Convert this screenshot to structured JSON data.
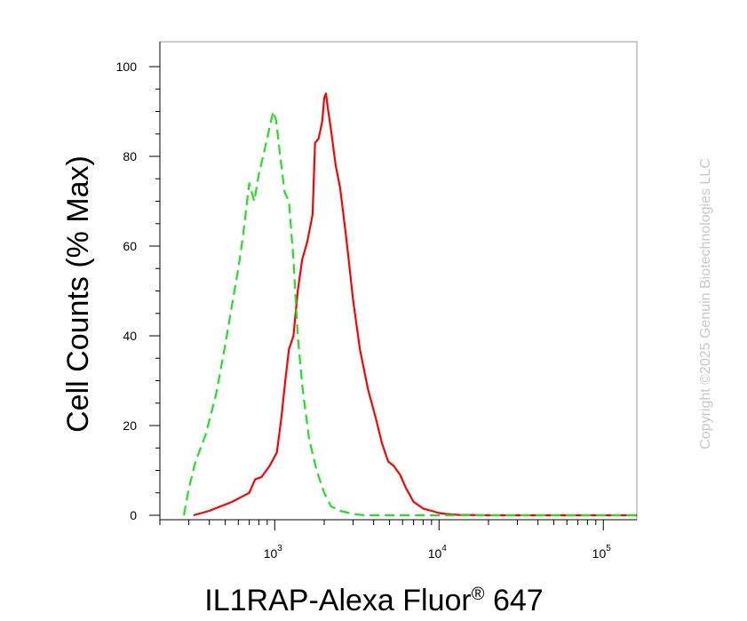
{
  "chart_data": {
    "type": "line",
    "title": "",
    "xlabel": "IL1RAP-Alexa Fluor",
    "xlabel_superscript": "®",
    "xlabel_suffix": " 647",
    "ylabel": "Cell Counts (% Max)",
    "x_scale": "log",
    "xlim": [
      200,
      160000
    ],
    "ylim": [
      0,
      100
    ],
    "y_ticks": [
      0,
      20,
      40,
      60,
      80,
      100
    ],
    "y_tick_labels": [
      "0",
      "20",
      "40",
      "60",
      "80",
      "100"
    ],
    "x_ticks": [
      {
        "value": 1000,
        "base": "10",
        "exp": "3"
      },
      {
        "value": 10000,
        "base": "10",
        "exp": "4"
      },
      {
        "value": 100000,
        "base": "10",
        "exp": "5"
      }
    ],
    "grid": false,
    "series": [
      {
        "name": "",
        "color": "#ff0000",
        "style": "solid",
        "x": [
          320,
          400,
          470,
          550,
          620,
          700,
          760,
          830,
          930,
          1030,
          1100,
          1160,
          1220,
          1300,
          1380,
          1470,
          1580,
          1700,
          1760,
          1850,
          1900,
          1950,
          2000,
          2050,
          2100,
          2200,
          2350,
          2500,
          2700,
          2800,
          3000,
          3300,
          3700,
          4100,
          4500,
          4900,
          5300,
          5800,
          6300,
          7000,
          8000,
          9000,
          10000,
          11000,
          13000,
          20000,
          50000,
          100000,
          160000
        ],
        "y": [
          0,
          1,
          2,
          3,
          4,
          5,
          8,
          8.5,
          11,
          14,
          22,
          30,
          37,
          40,
          50,
          57,
          61,
          67,
          83,
          84,
          86,
          88,
          93,
          94,
          91,
          86,
          78,
          73,
          63,
          58,
          48,
          37,
          28,
          22,
          16,
          12,
          11,
          9,
          6,
          3,
          1.5,
          1,
          0.5,
          0.3,
          0.1,
          0,
          0,
          0,
          0
        ]
      },
      {
        "name": "",
        "color": "#22e022",
        "style": "dashed",
        "x": [
          280,
          300,
          330,
          380,
          440,
          500,
          550,
          600,
          640,
          700,
          750,
          800,
          850,
          900,
          950,
          980,
          1020,
          1080,
          1150,
          1220,
          1300,
          1380,
          1480,
          1620,
          1800,
          2000,
          2200,
          2500,
          3000,
          3500,
          4000,
          5000,
          7000,
          9000,
          160000
        ],
        "y": [
          0,
          6,
          12,
          18,
          27,
          38,
          47,
          55,
          62,
          74,
          70,
          76,
          80,
          84,
          88,
          90,
          88,
          80,
          72,
          70,
          57,
          40,
          28,
          17,
          10,
          5,
          2,
          1,
          0.3,
          0,
          0,
          0,
          0,
          0,
          0
        ]
      }
    ]
  },
  "watermark": "Copyright ©2025 Genuin Biotechnologies LLC"
}
